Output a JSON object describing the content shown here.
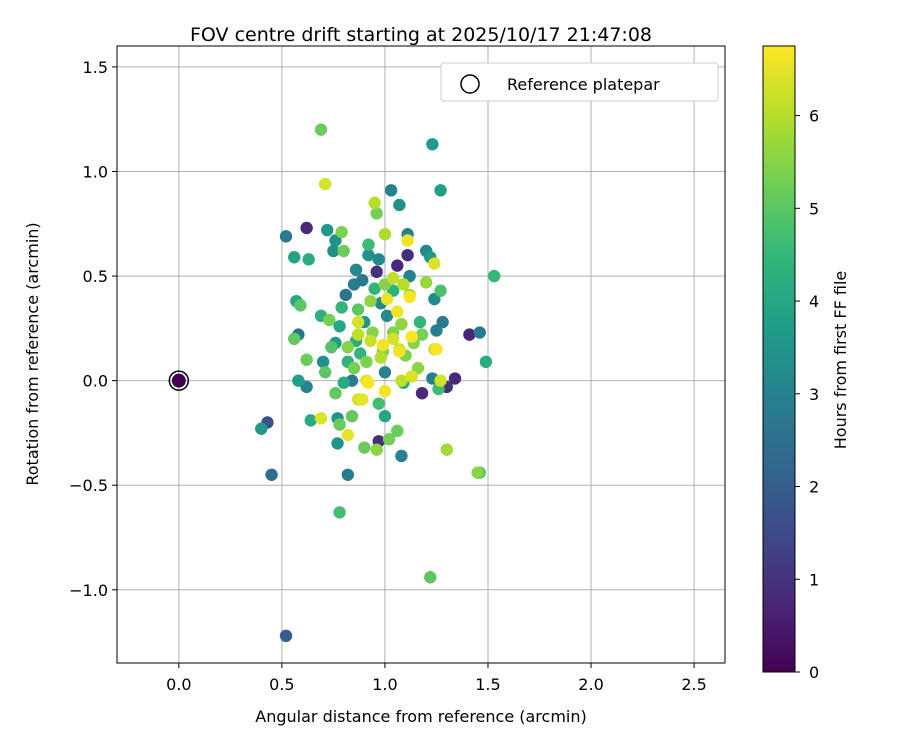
{
  "chart_data": {
    "type": "scatter",
    "title": "FOV centre drift starting at 2025/10/17 21:47:08",
    "xlabel": "Angular distance from reference (arcmin)",
    "ylabel": "Rotation from reference (arcmin)",
    "xlim": [
      -0.3,
      2.65
    ],
    "ylim": [
      -1.35,
      1.6
    ],
    "xticks": [
      0.0,
      0.5,
      1.0,
      1.5,
      2.0,
      2.5
    ],
    "xtick_labels": [
      "0.0",
      "0.5",
      "1.0",
      "1.5",
      "2.0",
      "2.5"
    ],
    "yticks": [
      -1.0,
      -0.5,
      0.0,
      0.5,
      1.0,
      1.5
    ],
    "ytick_labels": [
      "−1.0",
      "−0.5",
      "0.0",
      "0.5",
      "1.0",
      "1.5"
    ],
    "grid": true,
    "legend": {
      "position": "top-right",
      "entries": [
        "Reference platepar"
      ]
    },
    "reference_point": {
      "x": 0.0,
      "y": 0.0,
      "label": "Reference platepar",
      "color_value": 0.0
    },
    "colorbar": {
      "label": "Hours from first FF file",
      "range": [
        0,
        6.75
      ],
      "ticks": [
        0,
        1,
        2,
        3,
        4,
        5,
        6
      ],
      "tick_labels": [
        "0",
        "1",
        "2",
        "3",
        "4",
        "5",
        "6"
      ],
      "colormap": "viridis",
      "stops": [
        "#440154",
        "#482878",
        "#3e4a89",
        "#31688e",
        "#26828e",
        "#1f9e89",
        "#35b779",
        "#6ece58",
        "#b5de2b",
        "#fde725"
      ]
    },
    "points": [
      {
        "x": 0.62,
        "y": 0.73,
        "h": 0.8
      },
      {
        "x": 1.11,
        "y": 0.6,
        "h": 0.9
      },
      {
        "x": 1.06,
        "y": 0.55,
        "h": 0.8
      },
      {
        "x": 1.41,
        "y": 0.22,
        "h": 0.7
      },
      {
        "x": 1.34,
        "y": 0.01,
        "h": 0.8
      },
      {
        "x": 1.3,
        "y": -0.03,
        "h": 0.9
      },
      {
        "x": 1.18,
        "y": -0.06,
        "h": 0.8
      },
      {
        "x": 0.97,
        "y": -0.29,
        "h": 0.9
      },
      {
        "x": 0.96,
        "y": 0.52,
        "h": 1.0
      },
      {
        "x": 0.43,
        "y": -0.2,
        "h": 1.7
      },
      {
        "x": 0.45,
        "y": -0.45,
        "h": 2.4
      },
      {
        "x": 0.52,
        "y": -1.22,
        "h": 2.0
      },
      {
        "x": 0.52,
        "y": 0.69,
        "h": 2.8
      },
      {
        "x": 0.58,
        "y": 0.22,
        "h": 2.6
      },
      {
        "x": 0.62,
        "y": -0.03,
        "h": 3.0
      },
      {
        "x": 0.81,
        "y": 0.41,
        "h": 2.6
      },
      {
        "x": 0.85,
        "y": 0.46,
        "h": 2.9
      },
      {
        "x": 0.86,
        "y": 0.53,
        "h": 3.1
      },
      {
        "x": 0.89,
        "y": 0.48,
        "h": 2.7
      },
      {
        "x": 0.82,
        "y": -0.45,
        "h": 2.9
      },
      {
        "x": 0.84,
        "y": 0.0,
        "h": 2.7
      },
      {
        "x": 1.03,
        "y": 0.91,
        "h": 3.0
      },
      {
        "x": 1.07,
        "y": 0.84,
        "h": 3.4
      },
      {
        "x": 1.11,
        "y": 0.7,
        "h": 2.9
      },
      {
        "x": 1.08,
        "y": -0.36,
        "h": 3.0
      },
      {
        "x": 1.12,
        "y": 0.5,
        "h": 3.0
      },
      {
        "x": 1.2,
        "y": 0.62,
        "h": 3.1
      },
      {
        "x": 1.24,
        "y": 0.39,
        "h": 3.3
      },
      {
        "x": 1.25,
        "y": 0.24,
        "h": 2.9
      },
      {
        "x": 1.28,
        "y": 0.28,
        "h": 2.8
      },
      {
        "x": 1.23,
        "y": 0.01,
        "h": 2.9
      },
      {
        "x": 1.46,
        "y": 0.23,
        "h": 2.7
      },
      {
        "x": 1.0,
        "y": 0.04,
        "h": 3.0
      },
      {
        "x": 0.98,
        "y": 0.37,
        "h": 3.1
      },
      {
        "x": 1.01,
        "y": 0.31,
        "h": 3.3
      },
      {
        "x": 0.97,
        "y": 0.58,
        "h": 3.2
      },
      {
        "x": 0.92,
        "y": 0.6,
        "h": 3.4
      },
      {
        "x": 0.9,
        "y": 0.28,
        "h": 3.6
      },
      {
        "x": 0.76,
        "y": 0.67,
        "h": 3.4
      },
      {
        "x": 0.77,
        "y": -0.3,
        "h": 3.5
      },
      {
        "x": 0.76,
        "y": 0.18,
        "h": 3.7
      },
      {
        "x": 0.75,
        "y": 0.62,
        "h": 3.3
      },
      {
        "x": 0.72,
        "y": 0.72,
        "h": 3.6
      },
      {
        "x": 0.7,
        "y": 0.09,
        "h": 3.4
      },
      {
        "x": 0.77,
        "y": -0.18,
        "h": 3.5
      },
      {
        "x": 1.23,
        "y": 1.13,
        "h": 3.7
      },
      {
        "x": 1.27,
        "y": 0.91,
        "h": 3.8
      },
      {
        "x": 1.22,
        "y": 0.59,
        "h": 3.6
      },
      {
        "x": 0.4,
        "y": -0.23,
        "h": 3.6
      },
      {
        "x": 0.57,
        "y": 0.38,
        "h": 4.0
      },
      {
        "x": 0.58,
        "y": 0.0,
        "h": 3.8
      },
      {
        "x": 0.56,
        "y": 0.59,
        "h": 3.9
      },
      {
        "x": 0.63,
        "y": 0.58,
        "h": 4.2
      },
      {
        "x": 0.64,
        "y": -0.19,
        "h": 4.1
      },
      {
        "x": 0.69,
        "y": 0.31,
        "h": 4.3
      },
      {
        "x": 0.79,
        "y": 0.35,
        "h": 4.4
      },
      {
        "x": 0.78,
        "y": 0.26,
        "h": 4.0
      },
      {
        "x": 0.82,
        "y": 0.09,
        "h": 4.3
      },
      {
        "x": 0.8,
        "y": -0.01,
        "h": 4.1
      },
      {
        "x": 0.86,
        "y": 0.19,
        "h": 4.2
      },
      {
        "x": 0.88,
        "y": 0.13,
        "h": 4.4
      },
      {
        "x": 0.92,
        "y": 0.65,
        "h": 4.6
      },
      {
        "x": 0.95,
        "y": 0.44,
        "h": 4.4
      },
      {
        "x": 0.97,
        "y": -0.11,
        "h": 4.7
      },
      {
        "x": 1.0,
        "y": -0.17,
        "h": 4.0
      },
      {
        "x": 1.04,
        "y": 0.43,
        "h": 4.3
      },
      {
        "x": 1.09,
        "y": -0.01,
        "h": 4.1
      },
      {
        "x": 1.17,
        "y": 0.28,
        "h": 4.4
      },
      {
        "x": 1.26,
        "y": -0.04,
        "h": 4.6
      },
      {
        "x": 1.27,
        "y": 0.43,
        "h": 4.8
      },
      {
        "x": 1.49,
        "y": 0.09,
        "h": 4.2
      },
      {
        "x": 1.53,
        "y": 0.5,
        "h": 4.5
      },
      {
        "x": 1.46,
        "y": -0.44,
        "h": 4.8
      },
      {
        "x": 0.78,
        "y": -0.63,
        "h": 4.7
      },
      {
        "x": 0.59,
        "y": 0.36,
        "h": 5.0
      },
      {
        "x": 0.56,
        "y": 0.2,
        "h": 5.1
      },
      {
        "x": 0.62,
        "y": 0.1,
        "h": 5.2
      },
      {
        "x": 0.71,
        "y": 0.04,
        "h": 5.0
      },
      {
        "x": 0.73,
        "y": 0.29,
        "h": 5.3
      },
      {
        "x": 0.74,
        "y": 0.16,
        "h": 4.9
      },
      {
        "x": 0.76,
        "y": -0.06,
        "h": 5.1
      },
      {
        "x": 0.78,
        "y": -0.21,
        "h": 5.2
      },
      {
        "x": 0.79,
        "y": 0.71,
        "h": 5.4
      },
      {
        "x": 0.8,
        "y": 0.62,
        "h": 5.2
      },
      {
        "x": 0.82,
        "y": 0.16,
        "h": 5.5
      },
      {
        "x": 0.84,
        "y": -0.17,
        "h": 5.1
      },
      {
        "x": 0.85,
        "y": 0.06,
        "h": 5.3
      },
      {
        "x": 0.87,
        "y": 0.34,
        "h": 5.0
      },
      {
        "x": 0.9,
        "y": -0.32,
        "h": 5.2
      },
      {
        "x": 0.91,
        "y": 0.09,
        "h": 5.4
      },
      {
        "x": 0.93,
        "y": 0.38,
        "h": 5.6
      },
      {
        "x": 0.94,
        "y": 0.23,
        "h": 5.5
      },
      {
        "x": 0.96,
        "y": 0.8,
        "h": 5.3
      },
      {
        "x": 0.96,
        "y": -0.33,
        "h": 5.6
      },
      {
        "x": 0.99,
        "y": 0.14,
        "h": 5.4
      },
      {
        "x": 1.0,
        "y": 0.46,
        "h": 5.5
      },
      {
        "x": 1.02,
        "y": -0.28,
        "h": 5.3
      },
      {
        "x": 1.04,
        "y": 0.23,
        "h": 5.4
      },
      {
        "x": 1.06,
        "y": -0.24,
        "h": 5.2
      },
      {
        "x": 1.08,
        "y": 0.27,
        "h": 5.6
      },
      {
        "x": 1.1,
        "y": 0.12,
        "h": 5.4
      },
      {
        "x": 1.12,
        "y": 0.41,
        "h": 5.7
      },
      {
        "x": 1.14,
        "y": 0.18,
        "h": 5.5
      },
      {
        "x": 1.16,
        "y": 0.06,
        "h": 5.6
      },
      {
        "x": 1.18,
        "y": 0.22,
        "h": 5.3
      },
      {
        "x": 1.2,
        "y": 0.47,
        "h": 5.7
      },
      {
        "x": 1.22,
        "y": -0.94,
        "h": 5.0
      },
      {
        "x": 0.69,
        "y": 1.2,
        "h": 5.2
      },
      {
        "x": 1.3,
        "y": -0.33,
        "h": 5.8
      },
      {
        "x": 1.45,
        "y": -0.44,
        "h": 5.5
      },
      {
        "x": 0.95,
        "y": 0.85,
        "h": 6.0
      },
      {
        "x": 1.0,
        "y": 0.7,
        "h": 5.9
      },
      {
        "x": 1.04,
        "y": 0.49,
        "h": 6.1
      },
      {
        "x": 1.09,
        "y": 0.46,
        "h": 6.0
      },
      {
        "x": 0.87,
        "y": 0.28,
        "h": 6.3
      },
      {
        "x": 0.87,
        "y": 0.22,
        "h": 6.1
      },
      {
        "x": 0.93,
        "y": 0.19,
        "h": 6.2
      },
      {
        "x": 0.98,
        "y": 0.11,
        "h": 6.0
      },
      {
        "x": 1.04,
        "y": 0.2,
        "h": 6.3
      },
      {
        "x": 1.07,
        "y": 0.15,
        "h": 6.2
      },
      {
        "x": 0.91,
        "y": 0.0,
        "h": 6.4
      },
      {
        "x": 0.87,
        "y": -0.09,
        "h": 6.3
      },
      {
        "x": 0.82,
        "y": -0.26,
        "h": 6.5
      },
      {
        "x": 1.08,
        "y": 0.0,
        "h": 6.1
      },
      {
        "x": 1.13,
        "y": 0.02,
        "h": 6.4
      },
      {
        "x": 1.24,
        "y": 0.15,
        "h": 6.2
      },
      {
        "x": 1.24,
        "y": 0.56,
        "h": 6.4
      },
      {
        "x": 1.27,
        "y": 0.0,
        "h": 6.3
      },
      {
        "x": 0.71,
        "y": 0.94,
        "h": 6.3
      },
      {
        "x": 0.69,
        "y": -0.18,
        "h": 6.4
      },
      {
        "x": 1.11,
        "y": 0.67,
        "h": 6.6
      },
      {
        "x": 1.12,
        "y": 0.4,
        "h": 6.7
      },
      {
        "x": 1.06,
        "y": 0.33,
        "h": 6.6
      },
      {
        "x": 1.01,
        "y": 0.39,
        "h": 6.5
      },
      {
        "x": 1.07,
        "y": 0.14,
        "h": 6.6
      },
      {
        "x": 1.13,
        "y": 0.21,
        "h": 6.7
      },
      {
        "x": 1.25,
        "y": 0.15,
        "h": 6.7
      },
      {
        "x": 0.99,
        "y": 0.17,
        "h": 6.6
      },
      {
        "x": 0.92,
        "y": -0.01,
        "h": 6.7
      },
      {
        "x": 0.89,
        "y": -0.09,
        "h": 6.5
      },
      {
        "x": 1.0,
        "y": -0.05,
        "h": 6.6
      }
    ]
  }
}
